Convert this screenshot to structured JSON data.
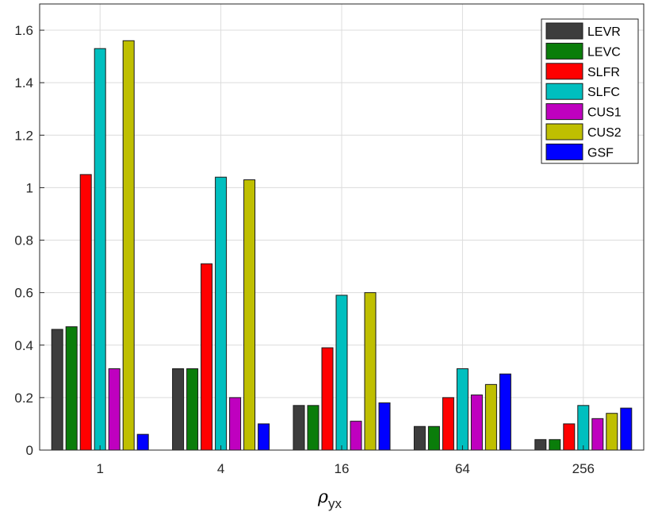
{
  "chart_data": {
    "type": "bar",
    "title": "",
    "xlabel_symbol": "ρ",
    "xlabel_sub": "yx",
    "ylabel": "",
    "categories": [
      "1",
      "4",
      "16",
      "64",
      "256"
    ],
    "ylim": [
      0,
      1.7
    ],
    "yticks": [
      0,
      0.2,
      0.4,
      0.6,
      0.8,
      1.0,
      1.2,
      1.4,
      1.6
    ],
    "ytick_labels": [
      "0",
      "0.2",
      "0.4",
      "0.6",
      "0.8",
      "1",
      "1.2",
      "1.4",
      "1.6"
    ],
    "grid": true,
    "legend_position": "top-right",
    "series": [
      {
        "name": "LEVR",
        "color": "#3d3d3d",
        "values": [
          0.46,
          0.31,
          0.17,
          0.09,
          0.04
        ]
      },
      {
        "name": "LEVC",
        "color": "#0a7d0a",
        "values": [
          0.47,
          0.31,
          0.17,
          0.09,
          0.04
        ]
      },
      {
        "name": "SLFR",
        "color": "#ff0000",
        "values": [
          1.05,
          0.71,
          0.39,
          0.2,
          0.1
        ]
      },
      {
        "name": "SLFC",
        "color": "#00bfbf",
        "values": [
          1.53,
          1.04,
          0.59,
          0.31,
          0.17
        ]
      },
      {
        "name": "CUS1",
        "color": "#bf00bf",
        "values": [
          0.31,
          0.2,
          0.11,
          0.21,
          0.12
        ]
      },
      {
        "name": "CUS2",
        "color": "#bfbf00",
        "values": [
          1.56,
          1.03,
          0.6,
          0.25,
          0.14
        ]
      },
      {
        "name": "GSF",
        "color": "#0000ff",
        "values": [
          0.06,
          0.1,
          0.18,
          0.29,
          0.16
        ]
      }
    ]
  }
}
